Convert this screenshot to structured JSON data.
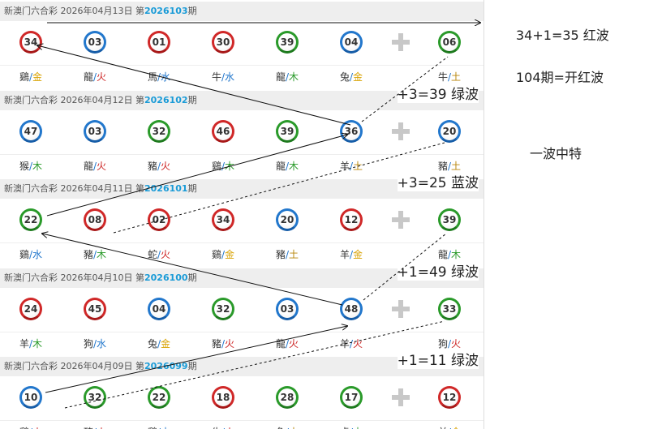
{
  "rows": [
    {
      "header_prefix": "新澳门六合彩 2026年04月13日 第",
      "issue": "2026103",
      "header_suffix": "期",
      "balls": [
        {
          "num": "34",
          "color": "red",
          "zodiac": "鷄",
          "element": "金",
          "element_color": "#d8a200"
        },
        {
          "num": "03",
          "color": "blue",
          "zodiac": "龍",
          "element": "火",
          "element_color": "#cc2222"
        },
        {
          "num": "01",
          "color": "red",
          "zodiac": "馬",
          "element": "水",
          "element_color": "#2277cc"
        },
        {
          "num": "30",
          "color": "red",
          "zodiac": "牛",
          "element": "水",
          "element_color": "#2277cc"
        },
        {
          "num": "39",
          "color": "green",
          "zodiac": "龍",
          "element": "木",
          "element_color": "#2a9a2a"
        },
        {
          "num": "04",
          "color": "blue",
          "zodiac": "兔",
          "element": "金",
          "element_color": "#d8a200"
        },
        {
          "num": "06",
          "color": "green",
          "zodiac": "牛",
          "element": "土",
          "element_color": "#b8860b"
        }
      ],
      "annotation": ""
    },
    {
      "header_prefix": "新澳门六合彩 2026年04月12日 第",
      "issue": "2026102",
      "header_suffix": "期",
      "balls": [
        {
          "num": "47",
          "color": "blue",
          "zodiac": "猴",
          "element": "木",
          "element_color": "#2a9a2a"
        },
        {
          "num": "03",
          "color": "blue",
          "zodiac": "龍",
          "element": "火",
          "element_color": "#cc2222"
        },
        {
          "num": "32",
          "color": "green",
          "zodiac": "豬",
          "element": "火",
          "element_color": "#cc2222"
        },
        {
          "num": "46",
          "color": "red",
          "zodiac": "鷄",
          "element": "木",
          "element_color": "#2a9a2a"
        },
        {
          "num": "39",
          "color": "green",
          "zodiac": "龍",
          "element": "木",
          "element_color": "#2a9a2a"
        },
        {
          "num": "36",
          "color": "blue",
          "zodiac": "羊",
          "element": "土",
          "element_color": "#b8860b"
        },
        {
          "num": "20",
          "color": "blue",
          "zodiac": "豬",
          "element": "土",
          "element_color": "#b8860b"
        }
      ],
      "annotation": "+3=39 绿波"
    },
    {
      "header_prefix": "新澳门六合彩 2026年04月11日 第",
      "issue": "2026101",
      "header_suffix": "期",
      "balls": [
        {
          "num": "22",
          "color": "green",
          "zodiac": "鷄",
          "element": "水",
          "element_color": "#2277cc"
        },
        {
          "num": "08",
          "color": "red",
          "zodiac": "豬",
          "element": "木",
          "element_color": "#2a9a2a"
        },
        {
          "num": "02",
          "color": "red",
          "zodiac": "蛇",
          "element": "火",
          "element_color": "#cc2222"
        },
        {
          "num": "34",
          "color": "red",
          "zodiac": "鷄",
          "element": "金",
          "element_color": "#d8a200"
        },
        {
          "num": "20",
          "color": "blue",
          "zodiac": "豬",
          "element": "土",
          "element_color": "#b8860b"
        },
        {
          "num": "12",
          "color": "red",
          "zodiac": "羊",
          "element": "金",
          "element_color": "#d8a200"
        },
        {
          "num": "39",
          "color": "green",
          "zodiac": "龍",
          "element": "木",
          "element_color": "#2a9a2a"
        }
      ],
      "annotation": "+3=25 蓝波"
    },
    {
      "header_prefix": "新澳门六合彩 2026年04月10日 第",
      "issue": "2026100",
      "header_suffix": "期",
      "balls": [
        {
          "num": "24",
          "color": "red",
          "zodiac": "羊",
          "element": "木",
          "element_color": "#2a9a2a"
        },
        {
          "num": "45",
          "color": "red",
          "zodiac": "狗",
          "element": "水",
          "element_color": "#2277cc"
        },
        {
          "num": "04",
          "color": "blue",
          "zodiac": "兔",
          "element": "金",
          "element_color": "#d8a200"
        },
        {
          "num": "32",
          "color": "green",
          "zodiac": "豬",
          "element": "火",
          "element_color": "#cc2222"
        },
        {
          "num": "03",
          "color": "blue",
          "zodiac": "龍",
          "element": "火",
          "element_color": "#cc2222"
        },
        {
          "num": "48",
          "color": "blue",
          "zodiac": "羊",
          "element": "火",
          "element_color": "#cc2222"
        },
        {
          "num": "33",
          "color": "green",
          "zodiac": "狗",
          "element": "火",
          "element_color": "#cc2222"
        }
      ],
      "annotation": "+1=49 绿波"
    },
    {
      "header_prefix": "新澳门六合彩 2026年04月09日 第",
      "issue": "2026099",
      "header_suffix": "期",
      "balls": [
        {
          "num": "10",
          "color": "blue",
          "zodiac": "鷄",
          "element": "火",
          "element_color": "#cc2222"
        },
        {
          "num": "32",
          "color": "green",
          "zodiac": "豬",
          "element": "火",
          "element_color": "#cc2222"
        },
        {
          "num": "22",
          "color": "green",
          "zodiac": "鷄",
          "element": "水",
          "element_color": "#2277cc"
        },
        {
          "num": "18",
          "color": "red",
          "zodiac": "牛",
          "element": "火",
          "element_color": "#cc2222"
        },
        {
          "num": "28",
          "color": "green",
          "zodiac": "兔",
          "element": "土",
          "element_color": "#b8860b"
        },
        {
          "num": "17",
          "color": "green",
          "zodiac": "虎",
          "element": "木",
          "element_color": "#2a9a2a"
        },
        {
          "num": "12",
          "color": "red",
          "zodiac": "羊",
          "element": "金",
          "element_color": "#d8a200"
        }
      ],
      "annotation": "+1=11 绿波"
    }
  ],
  "notes": {
    "line1": "34+1=35 红波",
    "line2": "104期=开红波",
    "line3": "一波中特"
  },
  "plus_icon": "plus-icon",
  "colors": {
    "red_wave": "#d02828",
    "blue_wave": "#2277cc",
    "green_wave": "#2a9a2a",
    "issue_number": "#1a9bd7",
    "header_bg": "#eeeeee"
  }
}
